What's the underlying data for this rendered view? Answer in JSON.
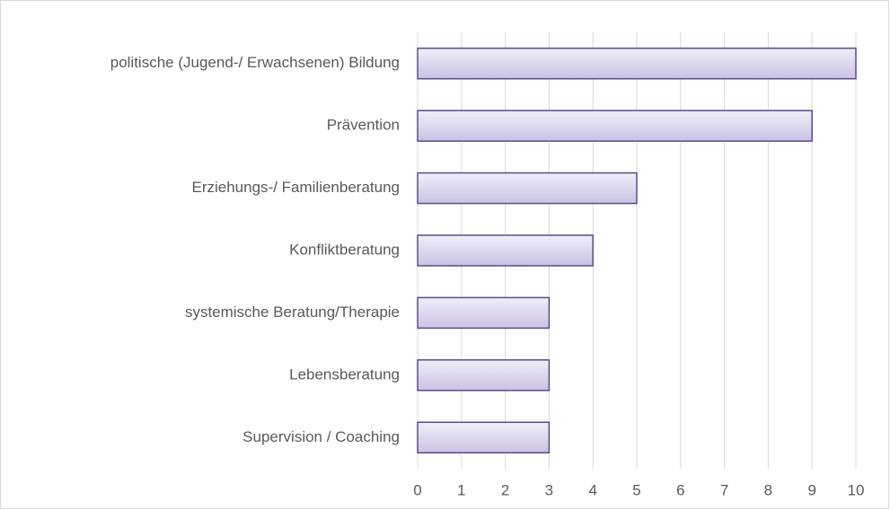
{
  "chart_data": {
    "type": "bar",
    "orientation": "horizontal",
    "categories": [
      "politische (Jugend-/ Erwachsenen) Bildung",
      "Prävention",
      "Erziehungs-/ Familienberatung",
      "Konfliktberatung",
      "systemische Beratung/Therapie",
      "Lebensberatung",
      "Supervision / Coaching"
    ],
    "values": [
      10,
      9,
      5,
      4,
      3,
      3,
      3
    ],
    "color": "#5b4a8b",
    "xlim": [
      0,
      10
    ],
    "xticks": [
      0,
      1,
      2,
      3,
      4,
      5,
      6,
      7,
      8,
      9,
      10
    ],
    "grid": true
  }
}
